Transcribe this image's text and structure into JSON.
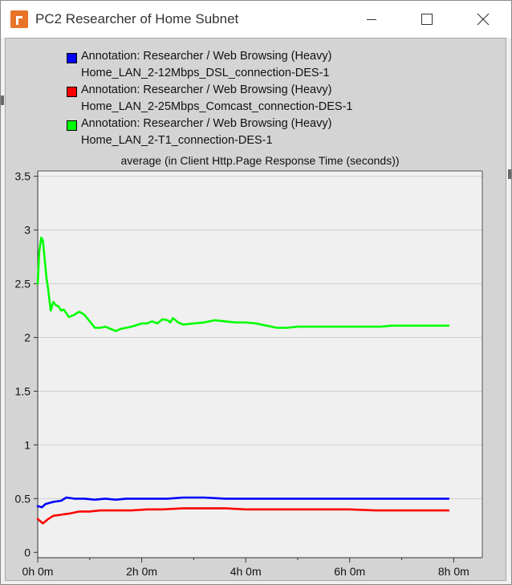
{
  "window": {
    "title": "PC2 Researcher of Home Subnet",
    "icon": "opnet-app-icon"
  },
  "titlebar_buttons": {
    "minimize_icon": "minimize-icon",
    "maximize_icon": "maximize-icon",
    "close_icon": "close-icon"
  },
  "chart_data": {
    "type": "line",
    "title": "average (in Client Http.Page Response Time (seconds))",
    "xlabel": "",
    "ylabel": "",
    "xlim": [
      0,
      8.55
    ],
    "ylim": [
      -0.05,
      3.55
    ],
    "x_ticks": [
      0,
      2,
      4,
      6,
      8
    ],
    "x_tick_labels": [
      "0h 0m",
      "2h 0m",
      "4h 0m",
      "6h 0m",
      "8h 0m"
    ],
    "y_ticks": [
      0,
      0.5,
      1,
      1.5,
      2,
      2.5,
      3,
      3.5
    ],
    "y_tick_labels": [
      "0",
      "0.5",
      "1",
      "1.5",
      "2",
      "2.5",
      "3",
      "3.5"
    ],
    "grid": true,
    "legend_position": "top",
    "series": [
      {
        "name": "Annotation: Researcher / Web Browsing (Heavy)",
        "name_line2": "Home_LAN_2-12Mbps_DSL_connection-DES-1",
        "color": "#0000ff",
        "x": [
          0,
          0.08,
          0.15,
          0.3,
          0.45,
          0.55,
          0.7,
          0.9,
          1.1,
          1.3,
          1.5,
          1.7,
          1.9,
          2.2,
          2.5,
          2.8,
          3.2,
          3.6,
          4.0,
          4.5,
          5.0,
          5.5,
          6.0,
          6.5,
          7.0,
          7.5,
          7.9
        ],
        "y": [
          0.43,
          0.42,
          0.45,
          0.47,
          0.48,
          0.51,
          0.5,
          0.5,
          0.49,
          0.5,
          0.49,
          0.5,
          0.5,
          0.5,
          0.5,
          0.51,
          0.51,
          0.5,
          0.5,
          0.5,
          0.5,
          0.5,
          0.5,
          0.5,
          0.5,
          0.5,
          0.5
        ]
      },
      {
        "name": "Annotation: Researcher / Web Browsing (Heavy)",
        "name_line2": "Home_LAN_2-25Mbps_Comcast_connection-DES-1",
        "color": "#ff0000",
        "x": [
          0,
          0.05,
          0.1,
          0.2,
          0.3,
          0.45,
          0.6,
          0.8,
          1.0,
          1.2,
          1.5,
          1.8,
          2.1,
          2.4,
          2.8,
          3.2,
          3.6,
          4.0,
          4.5,
          5.0,
          5.5,
          6.0,
          6.5,
          7.0,
          7.5,
          7.9
        ],
        "y": [
          0.31,
          0.29,
          0.27,
          0.31,
          0.34,
          0.35,
          0.36,
          0.38,
          0.38,
          0.39,
          0.39,
          0.39,
          0.4,
          0.4,
          0.41,
          0.41,
          0.41,
          0.4,
          0.4,
          0.4,
          0.4,
          0.4,
          0.39,
          0.39,
          0.39,
          0.39
        ]
      },
      {
        "name": "Annotation: Researcher / Web Browsing (Heavy)",
        "name_line2": "Home_LAN_2-T1_connection-DES-1",
        "color": "#00ff00",
        "x": [
          0,
          0.03,
          0.07,
          0.1,
          0.13,
          0.17,
          0.2,
          0.25,
          0.3,
          0.35,
          0.4,
          0.45,
          0.5,
          0.6,
          0.7,
          0.8,
          0.9,
          1.0,
          1.1,
          1.2,
          1.3,
          1.4,
          1.5,
          1.6,
          1.8,
          2.0,
          2.1,
          2.2,
          2.3,
          2.4,
          2.5,
          2.55,
          2.6,
          2.7,
          2.8,
          3.0,
          3.2,
          3.4,
          3.6,
          3.8,
          4.0,
          4.2,
          4.4,
          4.6,
          4.8,
          5.0,
          5.2,
          5.4,
          5.6,
          5.8,
          6.0,
          6.2,
          6.4,
          6.6,
          6.8,
          7.0,
          7.2,
          7.4,
          7.6,
          7.8,
          7.9
        ],
        "y": [
          2.5,
          2.8,
          2.93,
          2.9,
          2.75,
          2.55,
          2.45,
          2.25,
          2.33,
          2.3,
          2.29,
          2.25,
          2.26,
          2.19,
          2.21,
          2.24,
          2.21,
          2.15,
          2.09,
          2.09,
          2.1,
          2.08,
          2.06,
          2.08,
          2.1,
          2.13,
          2.13,
          2.15,
          2.13,
          2.17,
          2.16,
          2.14,
          2.18,
          2.14,
          2.12,
          2.13,
          2.14,
          2.16,
          2.15,
          2.14,
          2.14,
          2.13,
          2.11,
          2.09,
          2.09,
          2.1,
          2.1,
          2.1,
          2.1,
          2.1,
          2.1,
          2.1,
          2.1,
          2.1,
          2.11,
          2.11,
          2.11,
          2.11,
          2.11,
          2.11,
          2.11
        ]
      }
    ]
  }
}
